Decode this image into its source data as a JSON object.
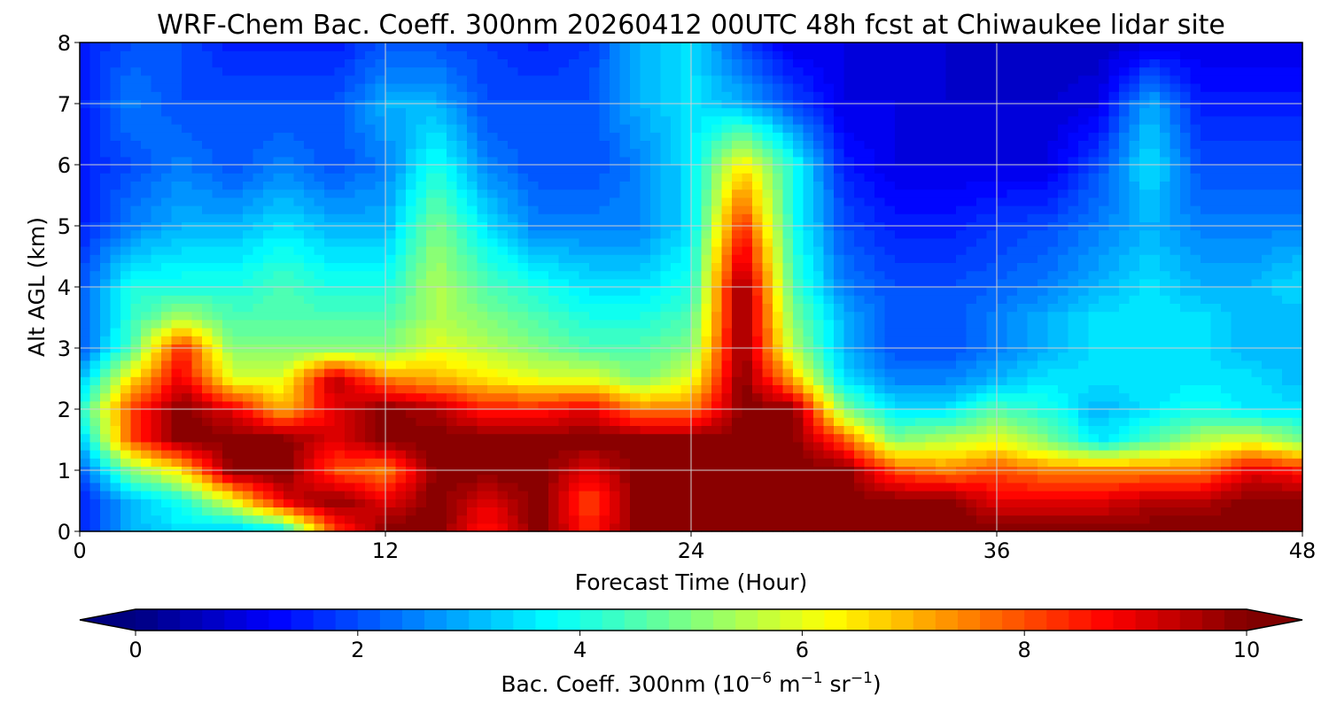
{
  "chart_data": {
    "type": "heatmap",
    "title": "WRF-Chem Bac. Coeff. 300nm  20260412 00UTC 48h fcst at Chiwaukee lidar site",
    "xlabel": "Forecast Time (Hour)",
    "ylabel": "Alt AGL (km)",
    "xlim": [
      0,
      48
    ],
    "ylim": [
      0,
      8
    ],
    "xticks": [
      0,
      12,
      24,
      36,
      48
    ],
    "yticks": [
      0,
      1,
      2,
      3,
      4,
      5,
      6,
      7,
      8
    ],
    "grid": true,
    "colormap": "jet",
    "colorbar": {
      "label_main": "Bac. Coeff. 300nm  (10",
      "label_exp1": "−6",
      "label_mid": " m",
      "label_exp2": "−1",
      "label_mid2": " sr",
      "label_exp3": "−1",
      "label_end": ")",
      "range": [
        0,
        10
      ],
      "ticks": [
        0,
        2,
        4,
        6,
        8,
        10
      ],
      "levels": 50,
      "extend": "both",
      "placement": "bottom"
    },
    "x": [
      0,
      2,
      4,
      6,
      8,
      10,
      12,
      14,
      16,
      18,
      20,
      22,
      24,
      26,
      28,
      30,
      32,
      34,
      36,
      38,
      40,
      42,
      44,
      46,
      48
    ],
    "z": [
      0,
      0.5,
      1,
      1.5,
      2,
      2.5,
      3,
      3.5,
      4,
      5,
      6,
      7,
      8
    ],
    "values": [
      [
        1.5,
        1.5,
        2,
        3,
        4,
        3,
        2,
        2,
        2,
        1.5,
        1.5,
        1.5,
        1.5
      ],
      [
        3,
        3,
        5,
        8,
        8,
        6.5,
        4.5,
        4.2,
        4,
        2.5,
        2,
        2.5,
        2
      ],
      [
        3.5,
        4,
        6.5,
        10,
        10,
        9,
        8.5,
        5.5,
        4,
        3,
        2.5,
        2,
        2
      ],
      [
        3,
        6,
        10,
        10,
        9,
        6,
        5,
        4.5,
        4,
        3,
        2,
        2,
        1.5
      ],
      [
        3.5,
        9,
        10,
        10,
        7,
        6,
        5,
        4.5,
        4.5,
        3.5,
        2.5,
        2,
        1.5
      ],
      [
        8,
        10,
        8,
        9,
        9,
        9.5,
        5,
        4.5,
        4,
        3,
        2,
        2,
        1.5
      ],
      [
        10,
        9,
        7.5,
        10,
        10,
        7.5,
        5,
        4.5,
        4,
        3,
        2.5,
        3,
        2
      ],
      [
        10,
        10,
        10,
        10,
        9.5,
        7,
        6,
        5.5,
        5.5,
        5,
        4,
        3,
        2
      ],
      [
        8.5,
        9,
        10,
        10,
        8.5,
        6.5,
        5.5,
        5,
        4.5,
        3.5,
        2.5,
        2,
        1.8
      ],
      [
        10,
        10,
        10,
        10,
        8.5,
        6,
        5,
        4.5,
        4,
        2.5,
        2,
        2,
        1.5
      ],
      [
        8.5,
        8,
        9,
        10,
        9,
        6,
        4.5,
        4,
        3.5,
        2.5,
        2,
        2,
        1.8
      ],
      [
        10,
        10,
        10,
        10,
        7.5,
        5,
        4.5,
        4,
        3.5,
        2.5,
        2.5,
        3,
        3
      ],
      [
        10,
        10,
        10,
        10,
        7.5,
        6,
        5,
        4.5,
        4,
        3.5,
        3.5,
        3.5,
        3.5
      ],
      [
        10,
        10,
        10,
        10,
        10,
        10,
        10,
        10,
        10,
        8.5,
        6.5,
        3,
        2
      ],
      [
        10,
        10,
        10,
        10,
        10,
        7,
        5.5,
        5,
        4.5,
        4,
        4,
        2,
        1
      ],
      [
        10,
        10,
        10,
        8,
        5,
        3.5,
        3,
        3,
        2.5,
        2,
        1.5,
        1,
        1
      ],
      [
        10,
        10,
        8,
        5,
        3.5,
        2.5,
        2,
        2,
        2,
        1.5,
        1,
        1,
        0.8
      ],
      [
        10,
        10,
        7.5,
        5.5,
        3.5,
        2.5,
        2,
        2,
        2,
        1.5,
        1,
        0.8,
        0.8
      ],
      [
        10,
        9,
        8,
        6,
        4.5,
        3,
        2.5,
        2.5,
        2.2,
        1.8,
        1,
        0.8,
        0.7
      ],
      [
        10,
        9,
        7.5,
        5,
        4,
        3.5,
        3,
        3,
        2.5,
        2,
        1,
        0.8,
        0.6
      ],
      [
        10,
        9,
        7.5,
        3.5,
        3,
        3.5,
        3.5,
        3.5,
        3,
        2.5,
        2,
        1,
        0.6
      ],
      [
        10,
        9.5,
        7.5,
        4.5,
        3.5,
        3.5,
        3.5,
        3.5,
        3.5,
        3,
        3.5,
        3,
        1
      ],
      [
        10,
        9.5,
        7.5,
        5.5,
        4,
        3.5,
        3.5,
        3.5,
        3,
        2.5,
        2,
        1.5,
        1
      ],
      [
        10,
        10,
        9,
        6,
        3.5,
        3.5,
        3,
        3,
        3,
        2.5,
        2,
        1.5,
        1
      ],
      [
        10,
        10,
        8.5,
        5,
        3.5,
        3,
        3,
        3,
        3.5,
        2.5,
        2,
        1.5,
        1
      ]
    ]
  }
}
